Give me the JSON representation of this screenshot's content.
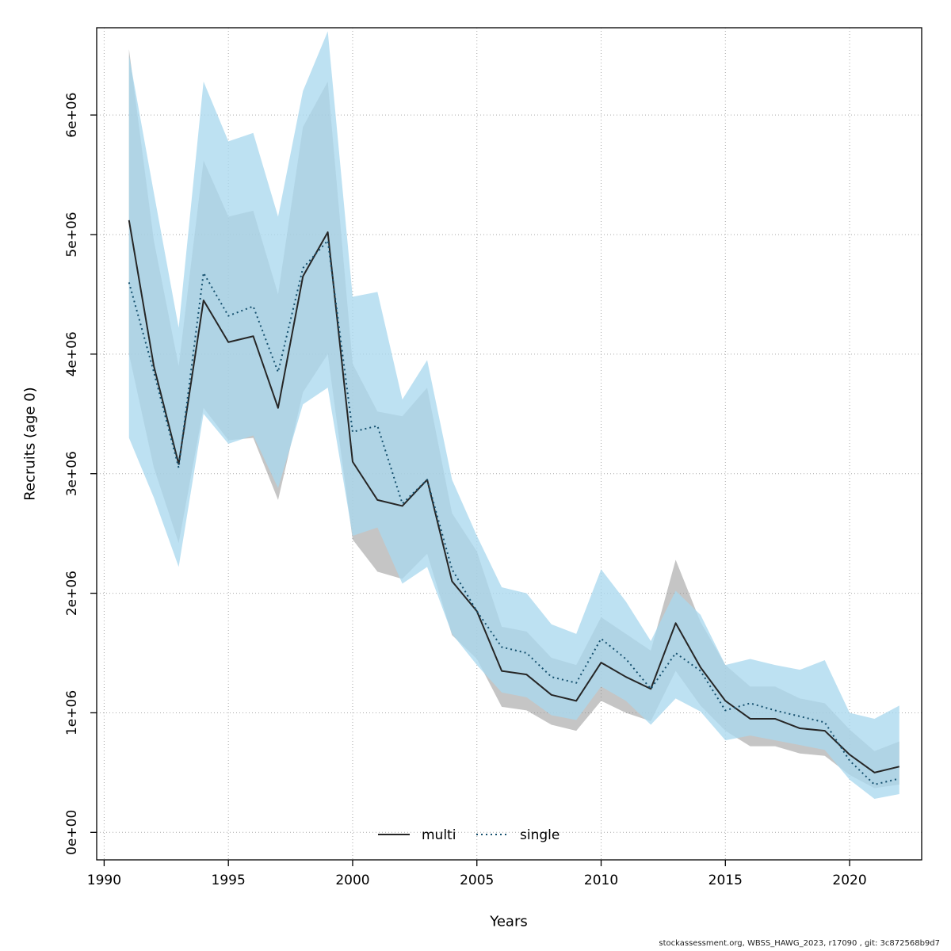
{
  "chart_data": {
    "type": "line",
    "title": "",
    "xlabel": "Years",
    "ylabel": "Recruits (age 0)",
    "grid": true,
    "legend_position": "bottom-center-inside",
    "xlim": [
      1989.7,
      2022.9
    ],
    "ylim": [
      -230000,
      6730000
    ],
    "x_ticks": [
      1990,
      1995,
      2000,
      2005,
      2010,
      2015,
      2020
    ],
    "y_ticks": [
      0,
      1000000,
      2000000,
      3000000,
      4000000,
      5000000,
      6000000
    ],
    "y_tick_labels": [
      "0e+00",
      "1e+06",
      "2e+06",
      "3e+06",
      "4e+06",
      "5e+06",
      "6e+06"
    ],
    "years": [
      1991,
      1992,
      1993,
      1994,
      1995,
      1996,
      1997,
      1998,
      1999,
      2000,
      2001,
      2002,
      2003,
      2004,
      2005,
      2006,
      2007,
      2008,
      2009,
      2010,
      2011,
      2012,
      2013,
      2014,
      2015,
      2016,
      2017,
      2018,
      2019,
      2020,
      2021,
      2022
    ],
    "series": [
      {
        "name": "multi",
        "style": "solid",
        "color": "#262626",
        "band_color": "#8c8c8c",
        "band_opacity": 0.5,
        "values": [
          5120000,
          3900000,
          3080000,
          4450000,
          4100000,
          4150000,
          3550000,
          4650000,
          5020000,
          3100000,
          2780000,
          2730000,
          2950000,
          2100000,
          1850000,
          1350000,
          1320000,
          1150000,
          1100000,
          1420000,
          1300000,
          1200000,
          1750000,
          1380000,
          1100000,
          950000,
          950000,
          870000,
          850000,
          650000,
          500000,
          550000
        ],
        "lo": [
          4000000,
          3050000,
          2420000,
          3550000,
          3280000,
          3300000,
          2780000,
          3680000,
          4000000,
          2450000,
          2180000,
          2120000,
          2330000,
          1650000,
          1450000,
          1050000,
          1020000,
          900000,
          850000,
          1100000,
          1000000,
          930000,
          1350000,
          1060000,
          850000,
          720000,
          720000,
          660000,
          640000,
          480000,
          370000,
          400000
        ],
        "hi": [
          6550000,
          4950000,
          3900000,
          5620000,
          5150000,
          5200000,
          4500000,
          5900000,
          6280000,
          3920000,
          3520000,
          3480000,
          3720000,
          2670000,
          2350000,
          1720000,
          1680000,
          1460000,
          1400000,
          1800000,
          1660000,
          1520000,
          2280000,
          1760000,
          1400000,
          1220000,
          1220000,
          1120000,
          1080000,
          860000,
          680000,
          760000
        ]
      },
      {
        "name": "single",
        "style": "dotted",
        "color": "#15506e",
        "band_color": "#aad9ee",
        "band_opacity": 0.78,
        "values": [
          4600000,
          3850000,
          3050000,
          4680000,
          4320000,
          4400000,
          3850000,
          4720000,
          4950000,
          3350000,
          3400000,
          2750000,
          2950000,
          2200000,
          1850000,
          1550000,
          1500000,
          1300000,
          1250000,
          1620000,
          1450000,
          1200000,
          1500000,
          1350000,
          1020000,
          1080000,
          1020000,
          970000,
          920000,
          600000,
          400000,
          450000
        ],
        "lo": [
          3300000,
          2800000,
          2220000,
          3500000,
          3250000,
          3320000,
          2880000,
          3580000,
          3720000,
          2480000,
          2550000,
          2080000,
          2220000,
          1660000,
          1400000,
          1170000,
          1130000,
          980000,
          940000,
          1220000,
          1100000,
          900000,
          1120000,
          1010000,
          770000,
          810000,
          770000,
          730000,
          690000,
          440000,
          280000,
          320000
        ],
        "hi": [
          6500000,
          5350000,
          4220000,
          6280000,
          5780000,
          5850000,
          5150000,
          6200000,
          6700000,
          4480000,
          4520000,
          3620000,
          3950000,
          2950000,
          2480000,
          2050000,
          2000000,
          1740000,
          1660000,
          2200000,
          1930000,
          1600000,
          2020000,
          1820000,
          1400000,
          1450000,
          1400000,
          1360000,
          1440000,
          1000000,
          950000,
          1060000
        ]
      }
    ],
    "footer": "stockassessment.org, WBSS_HAWG_2023, r17090 , git: 3c872568b9d7"
  }
}
